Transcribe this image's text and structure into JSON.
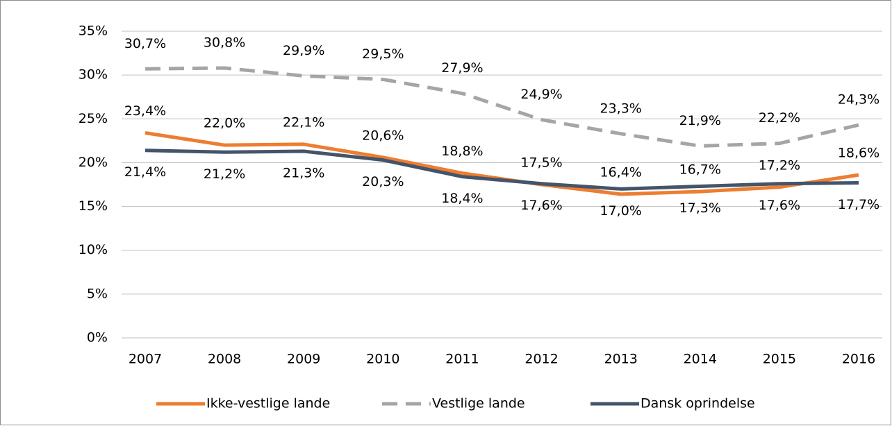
{
  "chart_data": {
    "type": "line",
    "categories": [
      "2007",
      "2008",
      "2009",
      "2010",
      "2011",
      "2012",
      "2013",
      "2014",
      "2015",
      "2016"
    ],
    "series": [
      {
        "name": "Ikke-vestlige lande",
        "color": "#ed7d31",
        "dashed": false,
        "values": [
          23.4,
          22.0,
          22.1,
          20.6,
          18.8,
          17.5,
          16.4,
          16.7,
          17.2,
          18.6
        ],
        "value_labels": [
          "23,4%",
          "22,0%",
          "22,1%",
          "20,6%",
          "18,8%",
          "17,5%",
          "16,4%",
          "16,7%",
          "17,2%",
          "18,6%"
        ]
      },
      {
        "name": "Vestlige lande",
        "color": "#a5a5a5",
        "dashed": true,
        "values": [
          30.7,
          30.8,
          29.9,
          29.5,
          27.9,
          24.9,
          23.3,
          21.9,
          22.2,
          24.3
        ],
        "value_labels": [
          "30,7%",
          "30,8%",
          "29,9%",
          "29,5%",
          "27,9%",
          "24,9%",
          "23,3%",
          "21,9%",
          "22,2%",
          "24,3%"
        ]
      },
      {
        "name": "Dansk oprindelse",
        "color": "#44546a",
        "dashed": false,
        "values": [
          21.4,
          21.2,
          21.3,
          20.3,
          18.4,
          17.6,
          17.0,
          17.3,
          17.6,
          17.7
        ],
        "value_labels": [
          "21,4%",
          "21,2%",
          "21,3%",
          "20,3%",
          "18,4%",
          "17,6%",
          "17,0%",
          "17,3%",
          "17,6%",
          "17,7%"
        ]
      }
    ],
    "ylim": [
      0,
      35
    ],
    "yticks": [
      {
        "value": 0,
        "label": "0%"
      },
      {
        "value": 5,
        "label": "5%"
      },
      {
        "value": 10,
        "label": "10%"
      },
      {
        "value": 15,
        "label": "15%"
      },
      {
        "value": 20,
        "label": "20%"
      },
      {
        "value": 25,
        "label": "25%"
      },
      {
        "value": 30,
        "label": "30%"
      },
      {
        "value": 35,
        "label": "35%"
      }
    ],
    "grid": true,
    "legend": "bottom"
  }
}
